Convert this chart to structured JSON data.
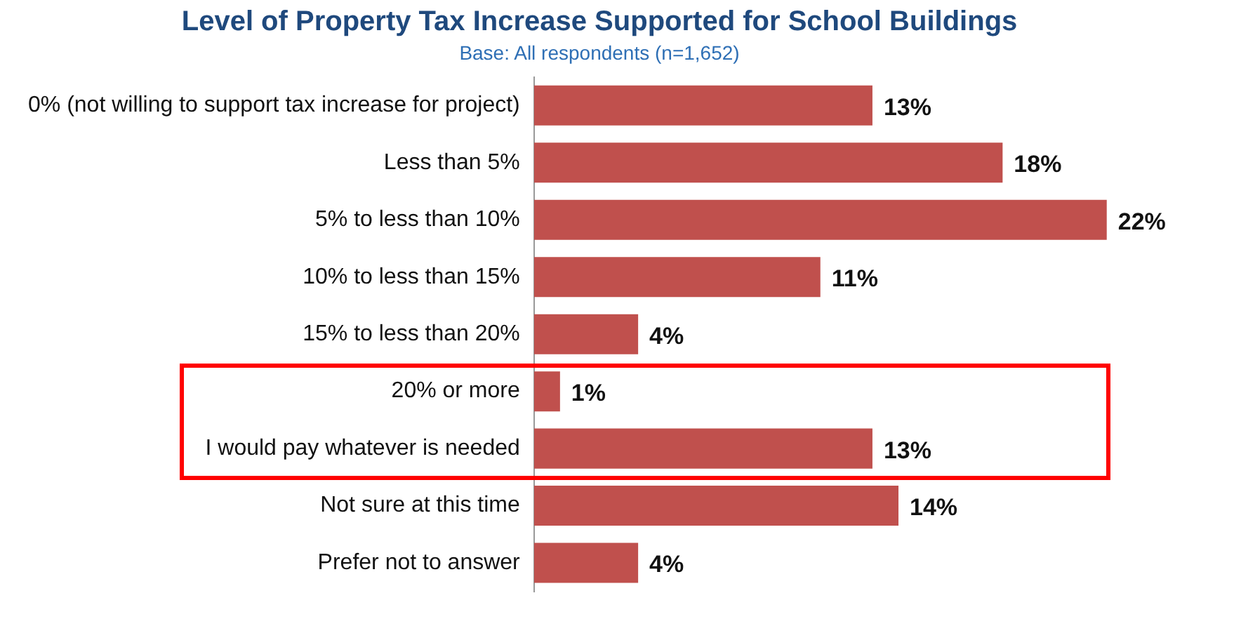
{
  "chart_data": {
    "type": "bar",
    "orientation": "horizontal",
    "title": "Level of Property Tax Increase Supported for School Buildings",
    "subtitle": "Base: All respondents (n=1,652)",
    "categories": [
      "0% (not willing to support tax increase for project)",
      "Less than 5%",
      "5% to less than 10%",
      "10% to less than 15%",
      "15% to less than 20%",
      "20% or more",
      "I would pay whatever is needed",
      "Not sure at this time",
      "Prefer not to answer"
    ],
    "values": [
      13,
      18,
      22,
      11,
      4,
      1,
      13,
      14,
      4
    ],
    "value_labels": [
      "13%",
      "18%",
      "22%",
      "11%",
      "4%",
      "1%",
      "13%",
      "14%",
      "4%"
    ],
    "color": "#c0504d",
    "tick_labels": "y",
    "grid": false,
    "legend": false
  }
}
